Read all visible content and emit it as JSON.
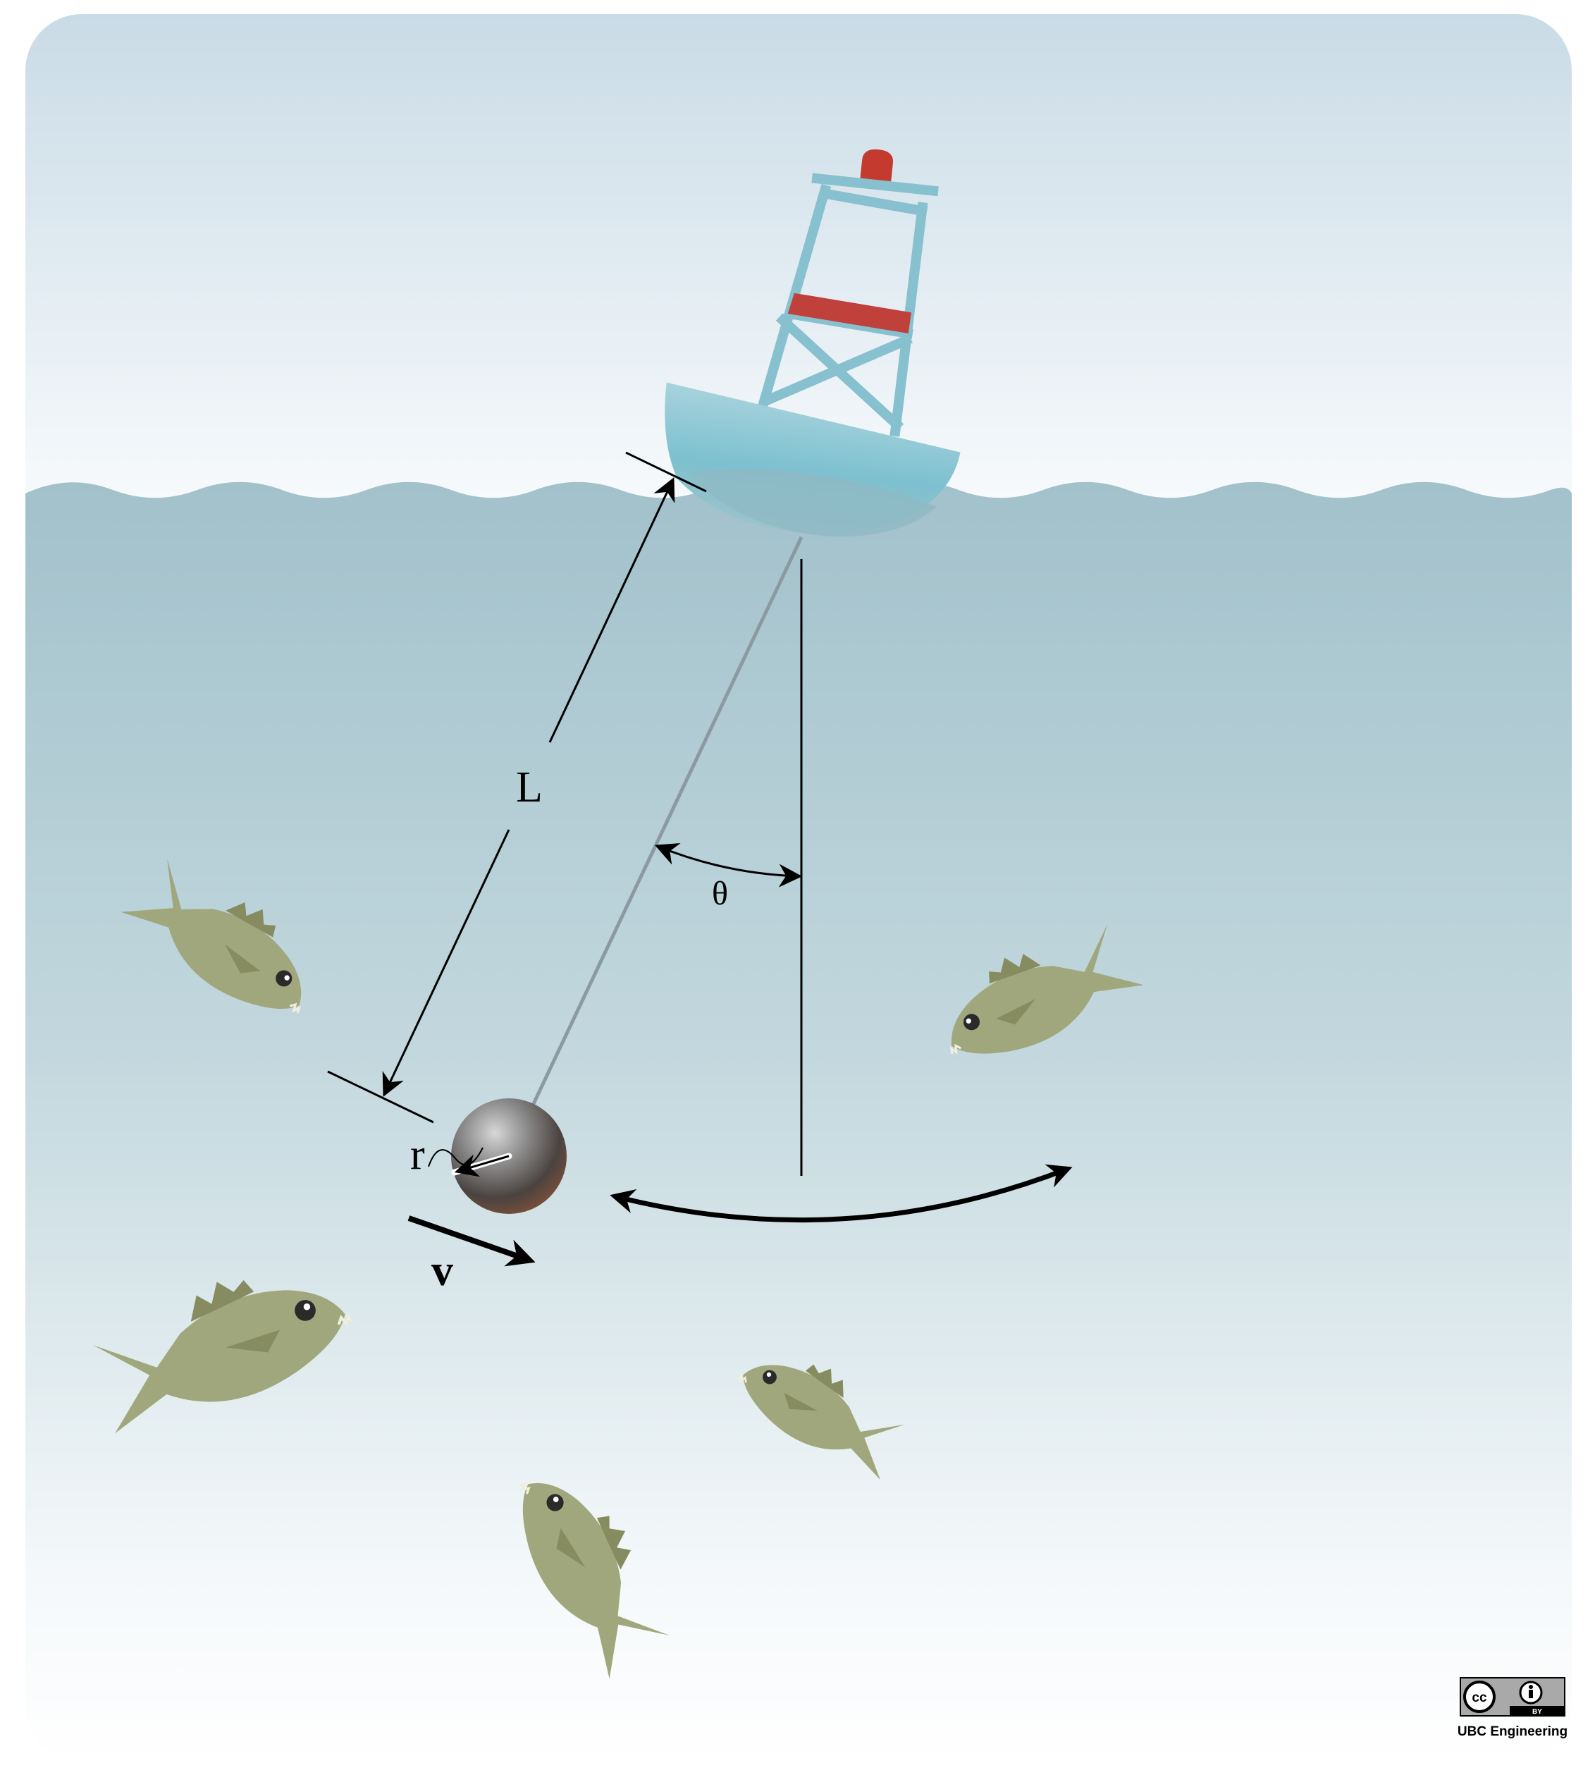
{
  "labels": {
    "length": "L",
    "angle": "θ",
    "radius": "r",
    "velocity": "v"
  },
  "license": {
    "cc_badge": "cc",
    "by_badge": "BY",
    "credit": "UBC Engineering"
  },
  "colors": {
    "sky_top": "#c9dbe6",
    "sky_bottom": "#f6f9fb",
    "water_top": "#9fbfca",
    "water_mid": "#bcd5dc",
    "water_bottom": "#ffffff",
    "buoy_frame": "#87c0cf",
    "buoy_band": "#c0403b",
    "buoy_light": "#c43a2e",
    "buoy_hull": "#7fbccb",
    "fish_body": "#a0a77c",
    "fish_fin": "#868c5f",
    "sphere_dark": "#3d3d3d",
    "sphere_light": "#bdbdbd",
    "sphere_rust": "#8a5a44",
    "ink": "#000000"
  }
}
